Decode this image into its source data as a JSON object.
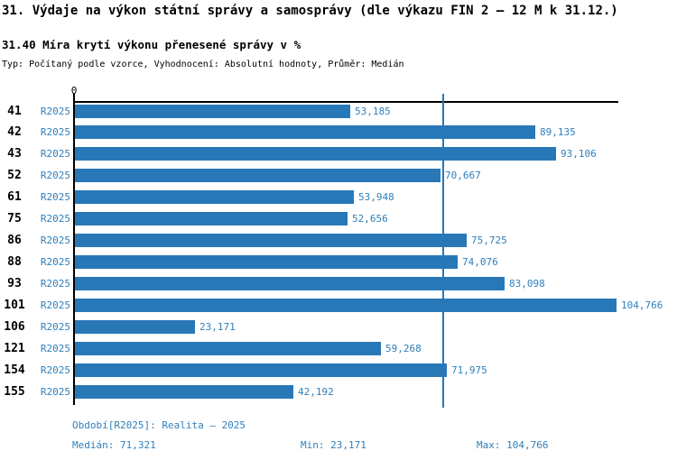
{
  "header": {
    "title": "31. Výdaje na výkon státní správy a samosprávy (dle výkazu FIN 2 – 12 M k 31.12.)",
    "subtitle": "31.40 Míra krytí výkonu přenesené správy v %",
    "meta": "Typ: Počítaný podle vzorce, Vyhodnocení: Absolutní hodnoty, Průměr: Medián"
  },
  "colors": {
    "bar": "#2878b8",
    "median_line": "#2878b8",
    "blue_text": "#2f7fba",
    "axis": "#000000",
    "background": "#ffffff"
  },
  "chart_data": {
    "type": "bar",
    "orientation": "horizontal",
    "title": "31.40 Míra krytí výkonu přenesené správy v %",
    "xlabel": "",
    "ylabel": "",
    "x_origin_label": "0",
    "xlim": [
      0,
      105.5
    ],
    "grid": false,
    "legend_position": "none",
    "series_name": "R2025",
    "categories": [
      "41",
      "42",
      "43",
      "52",
      "61",
      "75",
      "86",
      "88",
      "93",
      "101",
      "106",
      "121",
      "154",
      "155"
    ],
    "values": [
      53.185,
      89.135,
      93.106,
      70.667,
      53.948,
      52.656,
      75.725,
      74.076,
      83.098,
      104.766,
      23.171,
      59.268,
      71.975,
      42.192
    ],
    "value_labels": [
      "53,185",
      "89,135",
      "93,106",
      "70,667",
      "53,948",
      "52,656",
      "75,725",
      "74,076",
      "83,098",
      "104,766",
      "23,171",
      "59,268",
      "71,975",
      "42,192"
    ],
    "median": 71.321,
    "min": 23.171,
    "max": 104.766
  },
  "footer": {
    "period": "Období[R2025]: Realita – 2025",
    "median_label": "Medián:",
    "median_value": "71,321",
    "min_label": "Min:",
    "min_value": "23,171",
    "max_label": "Max:",
    "max_value": "104,766"
  }
}
